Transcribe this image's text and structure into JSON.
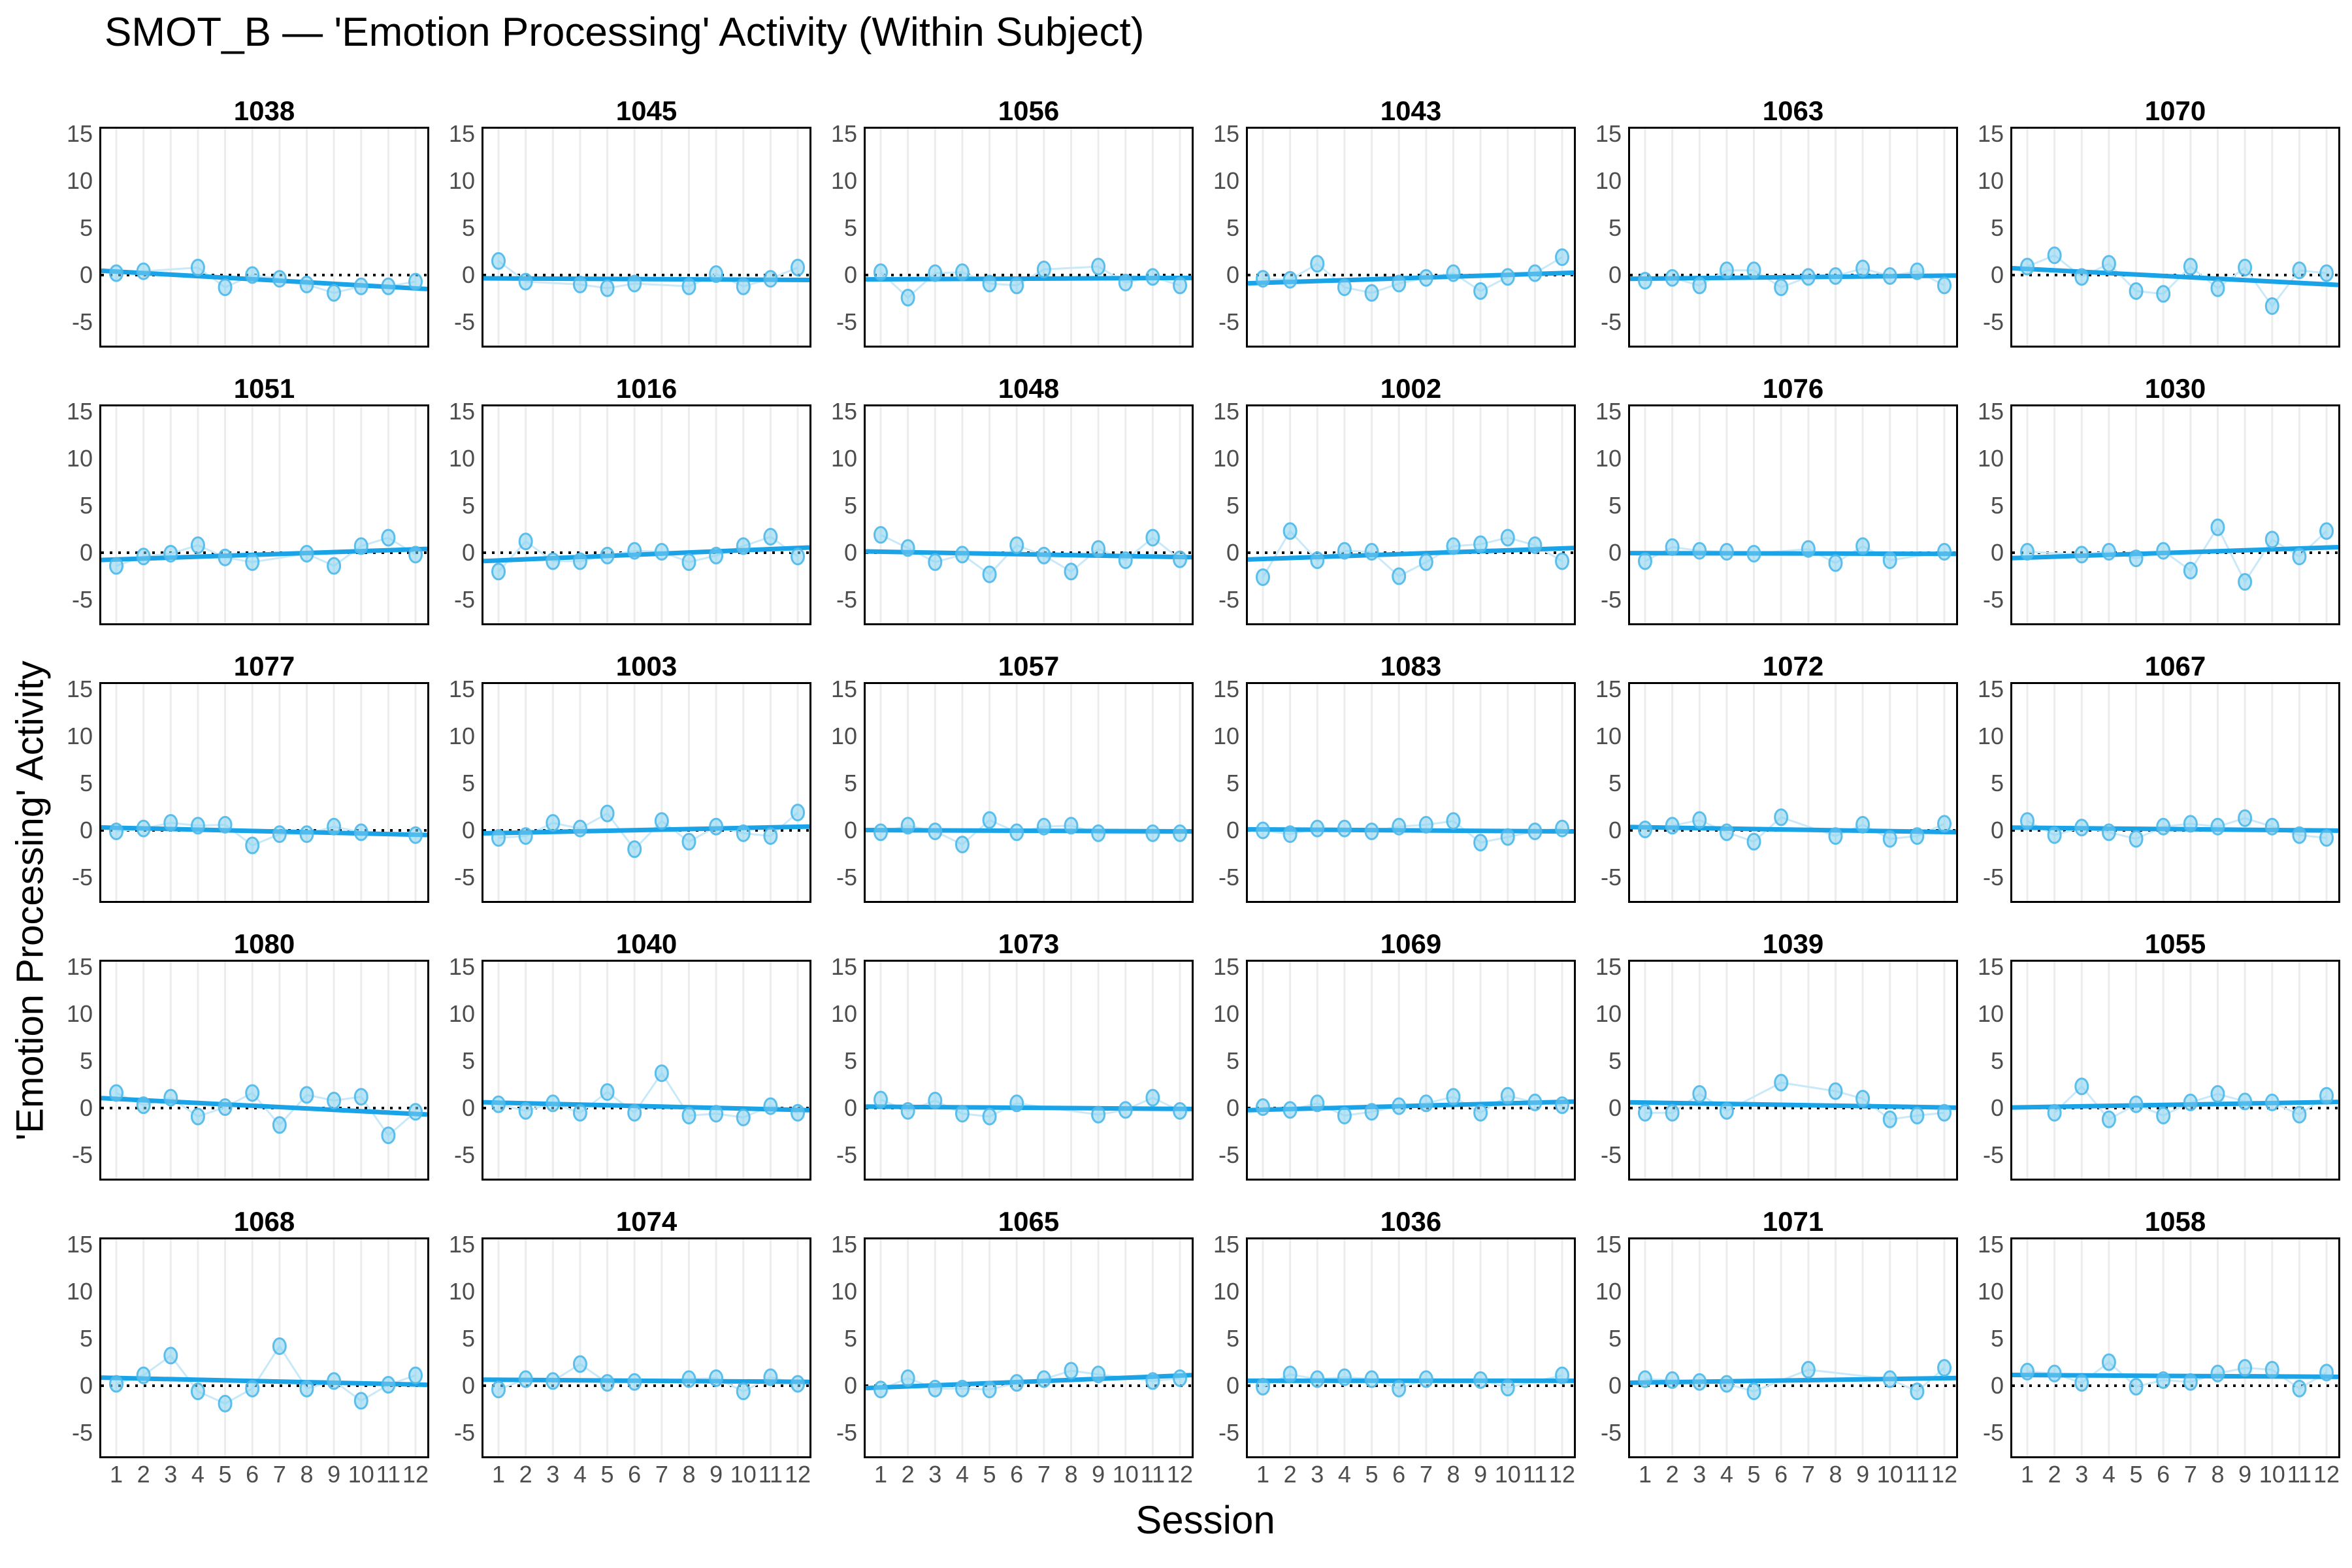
{
  "title": "SMOT_B — 'Emotion Processing' Activity (Within Subject)",
  "xlabel": "Session",
  "ylabel": "'Emotion Processing' Activity",
  "colors": {
    "background": "#ffffff",
    "panel_border": "#000000",
    "gridline": "#ececec",
    "tick_text": "#4d4d4d",
    "facet_title_text": "#000000",
    "point_fill": "#7fcff1",
    "point_stroke": "#4db8ea",
    "join_line": "#c9e8f8",
    "trend_line": "#1ba3e8",
    "zero_line": "#000000"
  },
  "chart_data": {
    "type": "scatter",
    "facet_layout": {
      "rows": 5,
      "cols": 6
    },
    "x": [
      1,
      2,
      3,
      4,
      5,
      6,
      7,
      8,
      9,
      10,
      11,
      12
    ],
    "x_tick_labels": [
      "1",
      "2",
      "3",
      "4",
      "5",
      "6",
      "7",
      "8",
      "9",
      "10",
      "11",
      "12"
    ],
    "y_tick_labels": [
      "15",
      "10",
      "5",
      "0",
      "-5"
    ],
    "y_ticks": [
      15,
      10,
      5,
      0,
      -5
    ],
    "ylim": [
      -7.6,
      15.6
    ],
    "reference_line_y": 0,
    "trend": "linear fit per facet",
    "facets": [
      {
        "id": "1038",
        "values": [
          0.2,
          0.4,
          null,
          0.8,
          -1.3,
          0.0,
          -0.4,
          -1.0,
          -1.9,
          -1.2,
          -1.2,
          -0.7
        ]
      },
      {
        "id": "1045",
        "values": [
          1.5,
          -0.7,
          null,
          -1.0,
          -1.4,
          -0.9,
          null,
          -1.2,
          0.1,
          -1.2,
          -0.4,
          0.8
        ]
      },
      {
        "id": "1056",
        "values": [
          0.3,
          -2.4,
          0.2,
          0.3,
          -0.9,
          -1.1,
          0.6,
          null,
          0.9,
          -0.8,
          -0.2,
          -1.1
        ]
      },
      {
        "id": "1043",
        "values": [
          -0.4,
          -0.5,
          1.2,
          -1.3,
          -1.9,
          -0.9,
          -0.3,
          0.2,
          -1.7,
          -0.2,
          0.2,
          1.9
        ]
      },
      {
        "id": "1063",
        "values": [
          -0.6,
          -0.3,
          -1.1,
          0.5,
          0.5,
          -1.3,
          -0.2,
          -0.1,
          0.7,
          -0.1,
          0.4,
          -1.1
        ]
      },
      {
        "id": "1070",
        "values": [
          0.9,
          2.1,
          -0.2,
          1.2,
          -1.7,
          -2.0,
          0.9,
          -1.4,
          0.8,
          -3.3,
          0.5,
          0.2
        ]
      },
      {
        "id": "1051",
        "values": [
          -1.4,
          -0.4,
          -0.1,
          0.8,
          -0.5,
          -1.0,
          null,
          -0.1,
          -1.4,
          0.7,
          1.6,
          -0.2
        ]
      },
      {
        "id": "1016",
        "values": [
          -2.0,
          1.2,
          -0.9,
          -0.9,
          -0.3,
          0.2,
          0.1,
          -1.0,
          -0.3,
          0.7,
          1.7,
          -0.4
        ]
      },
      {
        "id": "1048",
        "values": [
          1.9,
          0.5,
          -1.0,
          -0.2,
          -2.3,
          0.8,
          -0.3,
          -2.0,
          0.4,
          -0.8,
          1.6,
          -0.7
        ]
      },
      {
        "id": "1002",
        "values": [
          -2.6,
          2.3,
          -0.8,
          0.2,
          0.1,
          -2.5,
          -1.0,
          0.7,
          0.9,
          1.6,
          0.8,
          -0.9
        ]
      },
      {
        "id": "1076",
        "values": [
          -0.9,
          0.6,
          0.2,
          0.1,
          -0.1,
          null,
          0.4,
          -1.1,
          0.7,
          -0.8,
          null,
          0.1
        ]
      },
      {
        "id": "1030",
        "values": [
          0.1,
          null,
          -0.2,
          0.1,
          -0.6,
          0.2,
          -1.9,
          2.7,
          -3.1,
          1.4,
          -0.4,
          2.3
        ]
      },
      {
        "id": "1077",
        "values": [
          -0.1,
          0.2,
          0.8,
          0.5,
          0.6,
          -1.6,
          -0.4,
          -0.4,
          0.4,
          -0.2,
          null,
          -0.5
        ]
      },
      {
        "id": "1003",
        "values": [
          -0.8,
          -0.6,
          0.8,
          0.2,
          1.8,
          -2.0,
          1.0,
          -1.2,
          0.4,
          -0.3,
          -0.6,
          1.9
        ]
      },
      {
        "id": "1057",
        "values": [
          -0.2,
          0.5,
          -0.1,
          -1.5,
          1.1,
          -0.2,
          0.4,
          0.5,
          -0.3,
          null,
          -0.3,
          -0.3
        ]
      },
      {
        "id": "1083",
        "values": [
          0.0,
          -0.4,
          0.2,
          0.2,
          -0.1,
          0.4,
          0.6,
          1.0,
          -1.3,
          -0.7,
          -0.1,
          0.2
        ]
      },
      {
        "id": "1072",
        "values": [
          0.1,
          0.5,
          1.1,
          -0.2,
          -1.2,
          1.4,
          null,
          -0.6,
          0.6,
          -0.9,
          -0.6,
          0.7
        ]
      },
      {
        "id": "1067",
        "values": [
          1.0,
          -0.5,
          0.3,
          -0.2,
          -0.9,
          0.4,
          0.7,
          0.4,
          1.3,
          0.4,
          -0.5,
          -0.8
        ]
      },
      {
        "id": "1080",
        "values": [
          1.6,
          0.3,
          1.1,
          -0.9,
          0.1,
          1.6,
          -1.8,
          1.4,
          0.8,
          1.2,
          -2.9,
          -0.4
        ]
      },
      {
        "id": "1040",
        "values": [
          0.4,
          -0.3,
          0.5,
          -0.5,
          1.7,
          -0.5,
          3.7,
          -0.8,
          -0.6,
          -1.0,
          0.2,
          -0.5
        ]
      },
      {
        "id": "1073",
        "values": [
          0.9,
          -0.3,
          0.8,
          -0.6,
          -0.9,
          0.5,
          null,
          null,
          -0.7,
          -0.2,
          1.1,
          -0.3
        ]
      },
      {
        "id": "1069",
        "values": [
          0.1,
          -0.2,
          0.5,
          -0.8,
          -0.4,
          0.2,
          0.5,
          1.2,
          -0.5,
          1.3,
          0.6,
          0.3
        ]
      },
      {
        "id": "1039",
        "values": [
          -0.5,
          -0.5,
          1.5,
          -0.3,
          null,
          2.7,
          null,
          1.8,
          1.0,
          -1.2,
          -0.8,
          -0.5
        ]
      },
      {
        "id": "1055",
        "values": [
          null,
          -0.5,
          2.3,
          -1.2,
          0.4,
          -0.8,
          0.6,
          1.5,
          0.7,
          0.6,
          -0.7,
          1.3
        ]
      },
      {
        "id": "1068",
        "values": [
          0.2,
          1.1,
          3.2,
          -0.6,
          -1.9,
          -0.3,
          4.2,
          -0.3,
          0.5,
          -1.6,
          0.1,
          1.1
        ]
      },
      {
        "id": "1074",
        "values": [
          -0.4,
          0.7,
          0.5,
          2.3,
          0.3,
          0.4,
          null,
          0.7,
          0.8,
          -0.6,
          0.9,
          0.2
        ]
      },
      {
        "id": "1065",
        "values": [
          -0.4,
          0.8,
          -0.3,
          -0.3,
          -0.4,
          0.3,
          0.7,
          1.6,
          1.2,
          null,
          0.5,
          0.8
        ]
      },
      {
        "id": "1036",
        "values": [
          -0.1,
          1.2,
          0.7,
          0.9,
          0.7,
          -0.3,
          0.7,
          null,
          0.6,
          -0.2,
          null,
          1.1
        ]
      },
      {
        "id": "1071",
        "values": [
          0.7,
          0.6,
          0.4,
          0.2,
          -0.6,
          null,
          1.7,
          null,
          null,
          0.7,
          -0.6,
          1.9
        ]
      },
      {
        "id": "1058",
        "values": [
          1.5,
          1.3,
          0.3,
          2.5,
          -0.1,
          0.6,
          0.4,
          1.3,
          1.9,
          1.7,
          -0.3,
          1.4
        ]
      }
    ]
  }
}
